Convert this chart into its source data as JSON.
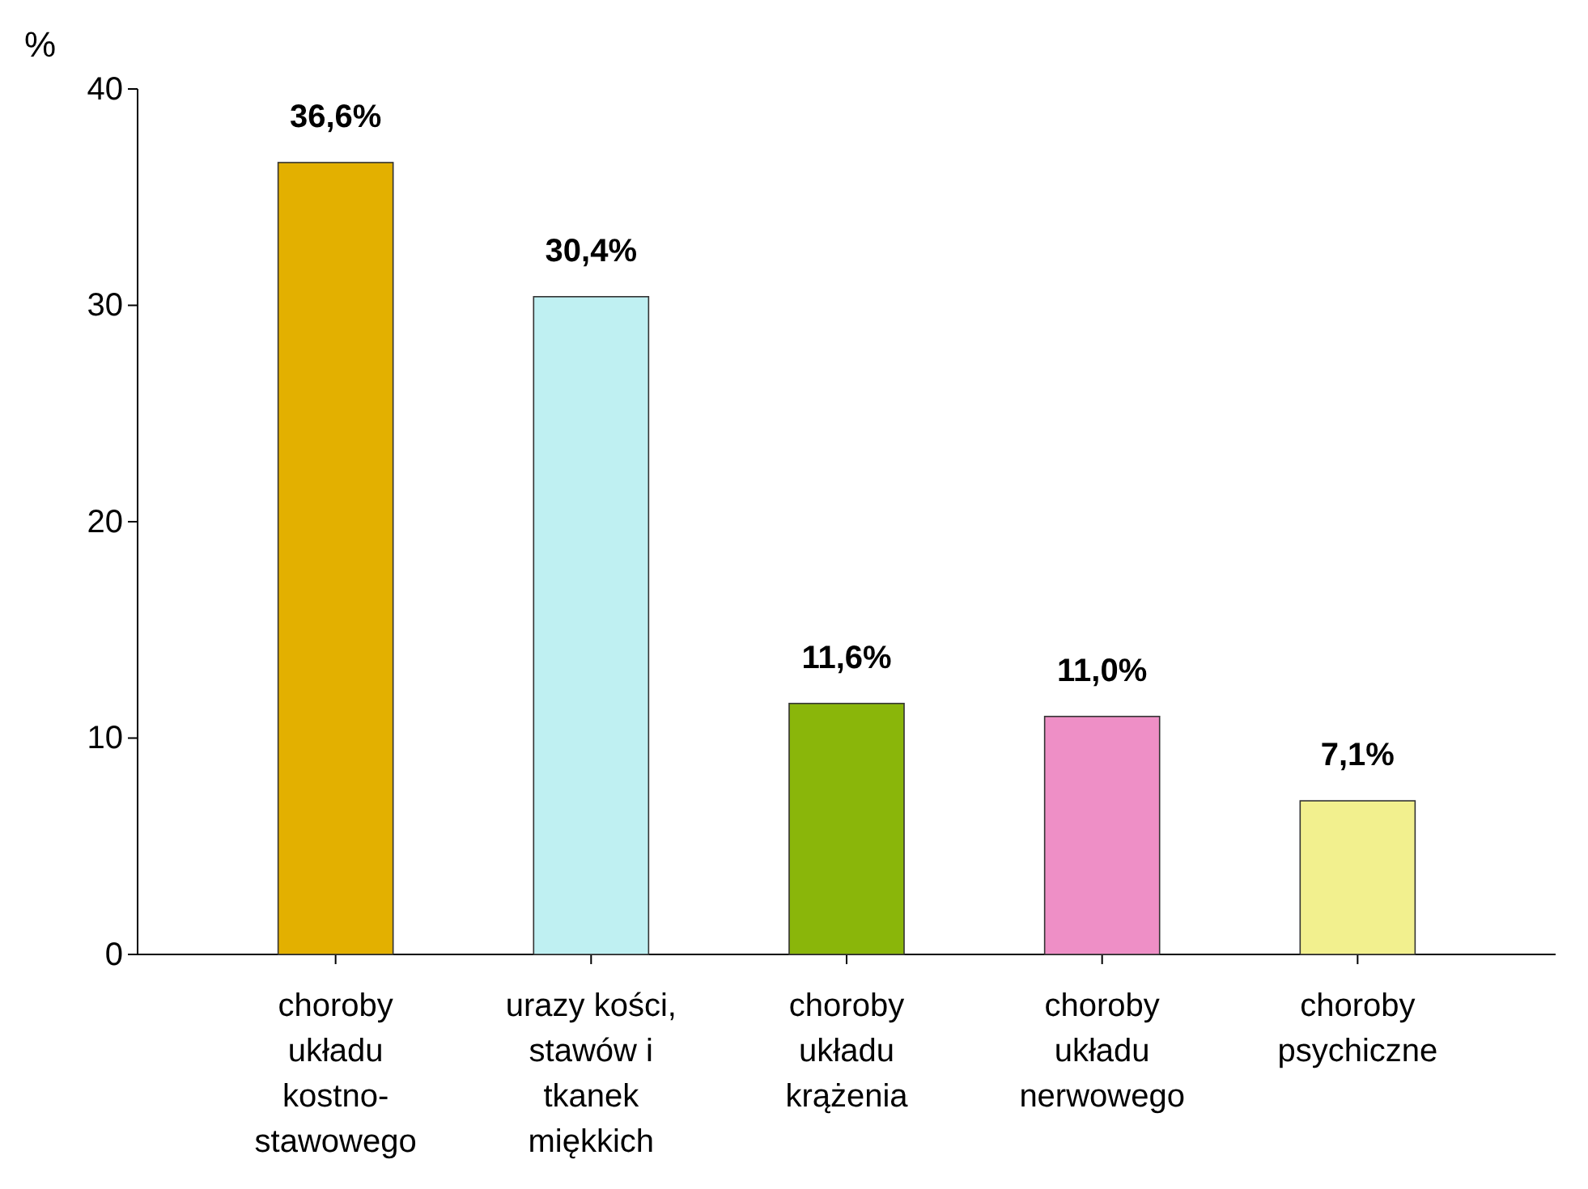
{
  "chart_data": {
    "type": "bar",
    "ylabel": "%",
    "categories": [
      "choroby układu kostno-stawowego",
      "urazy kości, stawów i tkanek miękkich",
      "choroby układu krążenia",
      "choroby układu nerwowego",
      "choroby psychiczne"
    ],
    "values": [
      36.6,
      30.4,
      11.6,
      11.0,
      7.1
    ],
    "value_labels": [
      "36,6%",
      "30,4%",
      "11,6%",
      "11,0%",
      "7,1%"
    ],
    "colors": [
      "#e3b000",
      "#bff0f2",
      "#8ab60a",
      "#ee8fc6",
      "#f2f08e"
    ],
    "ylim": [
      0,
      40
    ],
    "yticks": [
      0,
      10,
      20,
      30,
      40
    ]
  }
}
